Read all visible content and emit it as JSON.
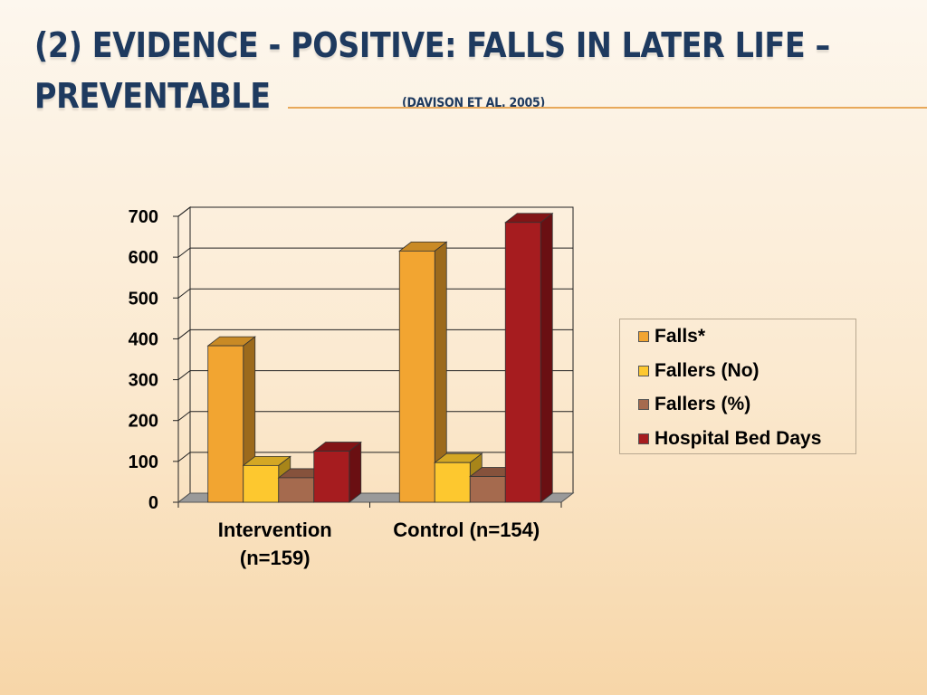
{
  "slide": {
    "title_line1": "(2) EVIDENCE - POSITIVE: FALLS IN LATER LIFE –",
    "title_line2": "PREVENTABLE",
    "citation": "(DAVISON ET AL. 2005)"
  },
  "chart_data": {
    "type": "bar",
    "categories": [
      "Intervention (n=159)",
      "Control (n=154)"
    ],
    "category_lines": [
      [
        "Intervention",
        "(n=159)"
      ],
      [
        "Control (n=154)"
      ]
    ],
    "series": [
      {
        "name": "Falls*",
        "values": [
          383,
          615
        ],
        "color": "#f2a531",
        "side_color": "#9c6a1c",
        "top_color": "#c98a25"
      },
      {
        "name": "Fallers (No)",
        "values": [
          90,
          97
        ],
        "color": "#fdc82f",
        "side_color": "#a88519",
        "top_color": "#d4a724"
      },
      {
        "name": "Fallers (%)",
        "values": [
          60,
          63
        ],
        "color": "#a56a4e",
        "side_color": "#6d4230",
        "top_color": "#86523c"
      },
      {
        "name": "Hospital Bed Days",
        "values": [
          125,
          685
        ],
        "color": "#a61c1f",
        "side_color": "#6a0f12",
        "top_color": "#821416"
      }
    ],
    "y_ticks": [
      "0",
      "100",
      "200",
      "300",
      "400",
      "500",
      "600",
      "700"
    ],
    "ylim": [
      0,
      700
    ],
    "grid": true,
    "legend_position": "right",
    "style": "3d-clustered-column"
  }
}
